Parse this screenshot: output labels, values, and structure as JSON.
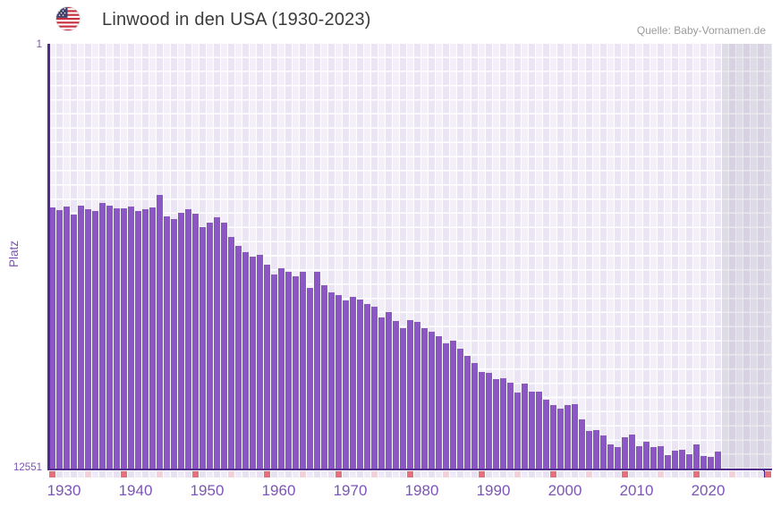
{
  "header": {
    "title": "Linwood in den USA (1930-2023)",
    "source": "Quelle: Baby-Vornamen.de",
    "flag_icon": "us-flag-icon"
  },
  "y_axis": {
    "label": "Platz",
    "top_tick": "1",
    "bottom_tick": "12551"
  },
  "x_axis": {
    "tick_labels": [
      "1930",
      "1940",
      "1950",
      "1960",
      "1970",
      "1980",
      "1990",
      "2000",
      "2010",
      "2020"
    ],
    "start_year": 1930,
    "last_bar_year": 2023,
    "axis_end_year": 2030
  },
  "colors": {
    "bar": "#8b57c7",
    "axis": "#4f2a8c",
    "label_purple": "#7b55b4",
    "title_text": "#3b3b3d",
    "source_text": "#9b9b9b",
    "tick_decade": "#e3717c",
    "tick_half_decade": "#f4d0db",
    "tick_cell_a": "#efeaf7",
    "tick_cell_b": "#e8e1f2",
    "column_a": "#f3eefa",
    "column_b": "#ebe4f5",
    "gridline": "#ffffff",
    "future_overlay": "rgba(95,84,117,0.13)"
  },
  "chart_data": {
    "type": "bar",
    "title": "Linwood in den USA (1930-2023)",
    "xlabel": "",
    "ylabel": "Platz",
    "y_axis_inverted": true,
    "ylim": [
      1,
      12551
    ],
    "grid": true,
    "legend": false,
    "years": [
      1930,
      1931,
      1932,
      1933,
      1934,
      1935,
      1936,
      1937,
      1938,
      1939,
      1940,
      1941,
      1942,
      1943,
      1944,
      1945,
      1946,
      1947,
      1948,
      1949,
      1950,
      1951,
      1952,
      1953,
      1954,
      1955,
      1956,
      1957,
      1958,
      1959,
      1960,
      1961,
      1962,
      1963,
      1964,
      1965,
      1966,
      1967,
      1968,
      1969,
      1970,
      1971,
      1972,
      1973,
      1974,
      1975,
      1976,
      1977,
      1978,
      1979,
      1980,
      1981,
      1982,
      1983,
      1984,
      1985,
      1986,
      1987,
      1988,
      1989,
      1990,
      1991,
      1992,
      1993,
      1994,
      1995,
      1996,
      1997,
      1998,
      1999,
      2000,
      2001,
      2002,
      2003,
      2004,
      2005,
      2006,
      2007,
      2008,
      2009,
      2010,
      2011,
      2012,
      2013,
      2014,
      2015,
      2016,
      2017,
      2018,
      2019,
      2020,
      2021,
      2022,
      2023
    ],
    "values": [
      4840,
      4925,
      4820,
      5050,
      4785,
      4880,
      4945,
      4695,
      4785,
      4855,
      4855,
      4820,
      4945,
      4880,
      4830,
      4475,
      5090,
      5180,
      4985,
      4880,
      5015,
      5410,
      5295,
      5130,
      5280,
      5700,
      5960,
      6170,
      6295,
      6240,
      6540,
      6805,
      6645,
      6750,
      6860,
      6735,
      7210,
      6735,
      7125,
      7335,
      7415,
      7575,
      7475,
      7565,
      7685,
      7780,
      8075,
      7925,
      8180,
      8405,
      8175,
      8210,
      8405,
      8500,
      8650,
      8855,
      8785,
      9020,
      9225,
      9445,
      9710,
      9725,
      9905,
      9870,
      10010,
      10300,
      10035,
      10280,
      10280,
      10505,
      10680,
      10785,
      10680,
      10660,
      11100,
      11430,
      11405,
      11580,
      11845,
      11915,
      11630,
      11560,
      11890,
      11755,
      11915,
      11890,
      12160,
      12030,
      11985,
      12130,
      11845,
      12180,
      12200,
      12045
    ]
  }
}
